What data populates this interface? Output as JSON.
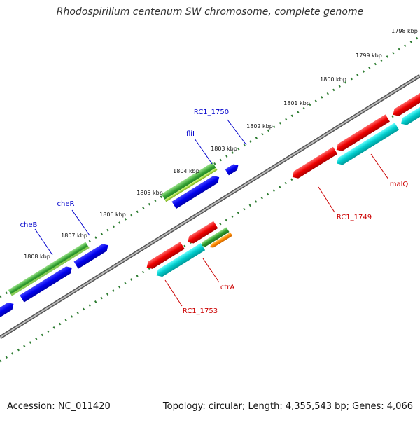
{
  "title": "Rhodospirillum centenum SW chromosome, complete genome",
  "footer": {
    "accession": "Accession: NC_011420",
    "topology": "Topology: circular; Length: 4,355,543 bp; Genes: 4,066"
  },
  "colors": {
    "background": "#ffffff",
    "backbone": "#7f7f7f",
    "ticks": "#2e7d32",
    "label_blue": "#0000cc",
    "label_red": "#cc0000",
    "gene_red": "#ee0000",
    "gene_blue": "#0000ee",
    "gene_cyan": "#00cccc",
    "gene_green": "#22aa22",
    "gene_orange": "#ff8800"
  },
  "scale_labels": [
    "1798 kbp",
    "1799 kbp",
    "1800 kbp",
    "1801 kbp",
    "1802 kbp",
    "1803 kbp",
    "1804 kbp",
    "1805 kbp",
    "1806 kbp",
    "1807 kbp",
    "1808 kbp"
  ],
  "gene_labels": {
    "top": [
      "RC1_1750",
      "fliI",
      "cheR",
      "cheB"
    ],
    "bottom": [
      "malQ",
      "RC1_1749",
      "ctrA",
      "RC1_1753"
    ]
  }
}
